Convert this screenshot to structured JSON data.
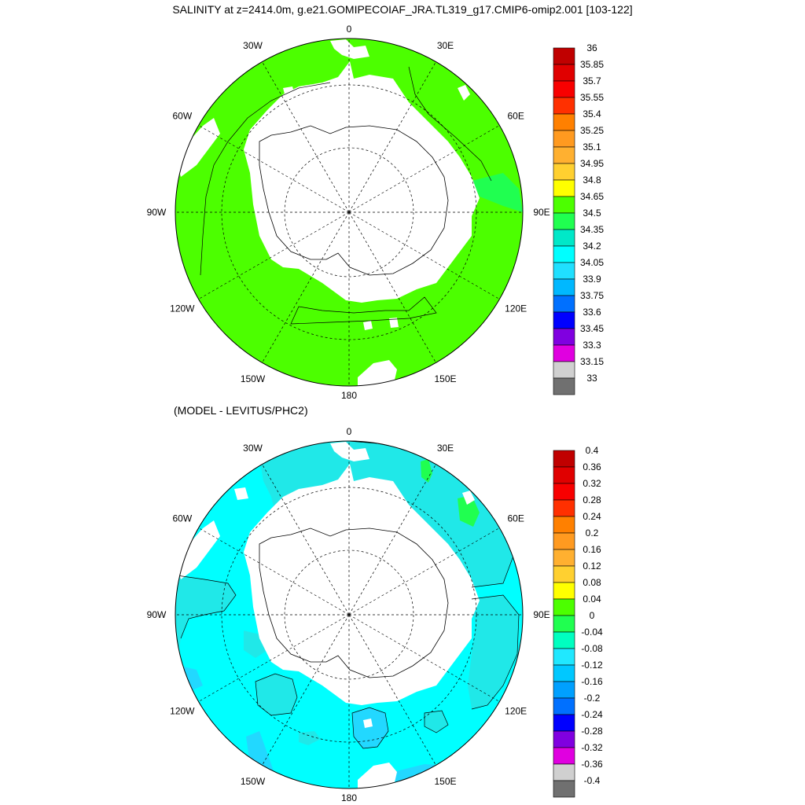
{
  "title": "SALINITY at z=2414.0m, g.e21.GOMIPECOIAF_JRA.TL319_g17.CMIP6-omip2.001 [103-122]",
  "subtitle": "(MODEL - LEVITUS/PHC2)",
  "lon_labels": [
    "0",
    "30E",
    "60E",
    "90E",
    "120E",
    "150E",
    "180",
    "150W",
    "120W",
    "90W",
    "60W",
    "30W"
  ],
  "colors": {
    "land": "#ffffff",
    "coast": "#000000",
    "grid": "#000000",
    "top_field": "#4cff00",
    "top_edge_field": "#20ff50",
    "bottom_field": "#00ffff",
    "bottom_patch": "#20e8e8",
    "bottom_shelf": "#22d8ff",
    "bottom_pos_patch": "#20ff50"
  },
  "colorbar_top": {
    "labels": [
      "36",
      "35.85",
      "35.7",
      "35.55",
      "35.4",
      "35.25",
      "35.1",
      "34.95",
      "34.8",
      "34.65",
      "34.5",
      "34.35",
      "34.2",
      "34.05",
      "33.9",
      "33.75",
      "33.6",
      "33.45",
      "33.3",
      "33.15",
      "33"
    ],
    "colors": [
      "#c00000",
      "#e00000",
      "#f80000",
      "#ff3000",
      "#ff8000",
      "#ff9a20",
      "#ffb030",
      "#ffd030",
      "#ffff00",
      "#4cff00",
      "#20ff50",
      "#00e8c8",
      "#00ffff",
      "#20e0ff",
      "#00b8ff",
      "#0070ff",
      "#0000ff",
      "#8000e0",
      "#e000e0",
      "#d0d0d0",
      "#707070"
    ]
  },
  "colorbar_bottom": {
    "labels": [
      "0.4",
      "0.36",
      "0.32",
      "0.28",
      "0.24",
      "0.2",
      "0.16",
      "0.12",
      "0.08",
      "0.04",
      "0",
      "-0.04",
      "-0.08",
      "-0.12",
      "-0.16",
      "-0.2",
      "-0.24",
      "-0.28",
      "-0.32",
      "-0.36",
      "-0.4"
    ],
    "colors": [
      "#c00000",
      "#e00000",
      "#f80000",
      "#ff3000",
      "#ff8000",
      "#ff9a20",
      "#ffb030",
      "#ffd030",
      "#ffff00",
      "#4cff00",
      "#20ff50",
      "#00ffc0",
      "#20e8ff",
      "#00c8ff",
      "#00a0ff",
      "#0070ff",
      "#0000ff",
      "#8000e0",
      "#e000e0",
      "#d0d0d0",
      "#707070"
    ]
  }
}
